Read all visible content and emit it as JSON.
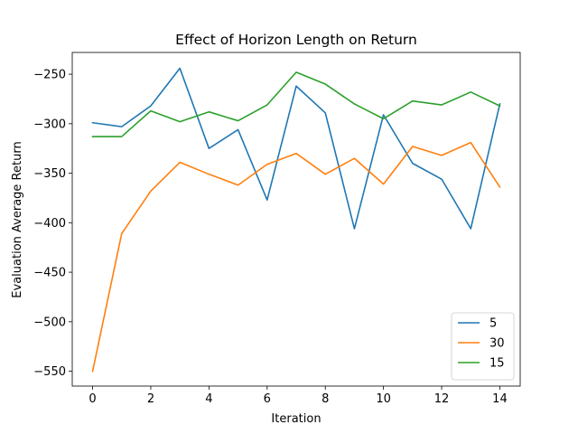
{
  "chart_data": {
    "type": "line",
    "title": "Effect of Horizon Length on Return",
    "xlabel": "Iteration",
    "ylabel": "Evaluation Average Return",
    "x": [
      0,
      1,
      2,
      3,
      4,
      5,
      6,
      7,
      8,
      9,
      10,
      11,
      12,
      13,
      14
    ],
    "xlim": [
      -0.7,
      14.7
    ],
    "ylim": [
      -565,
      -228
    ],
    "xticks": [
      0,
      2,
      4,
      6,
      8,
      10,
      12,
      14
    ],
    "yticks": [
      -550,
      -500,
      -450,
      -400,
      -350,
      -300,
      -250
    ],
    "grid": false,
    "legend_position": "lower right",
    "series": [
      {
        "name": "5",
        "color": "#1f77b4",
        "values": [
          -299,
          -303,
          -282,
          -244,
          -325,
          -306,
          -377,
          -262,
          -289,
          -406,
          -291,
          -340,
          -356,
          -406,
          -280
        ]
      },
      {
        "name": "30",
        "color": "#ff7f0e",
        "values": [
          -550,
          -411,
          -368,
          -339,
          -351,
          -362,
          -341,
          -330,
          -351,
          -335,
          -361,
          -323,
          -332,
          -319,
          -364
        ]
      },
      {
        "name": "15",
        "color": "#2ca02c",
        "values": [
          -313,
          -313,
          -287,
          -298,
          -288,
          -297,
          -281,
          -248,
          -260,
          -280,
          -295,
          -277,
          -281,
          -268,
          -282
        ]
      }
    ]
  }
}
